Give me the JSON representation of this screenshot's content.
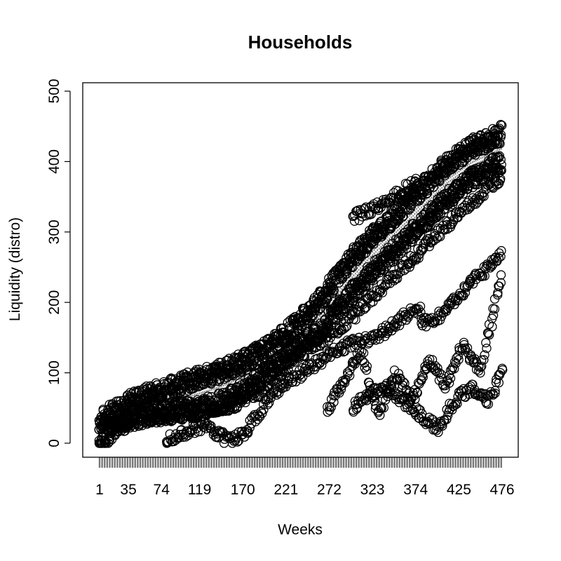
{
  "chart_data": {
    "type": "scatter",
    "title": "Households",
    "xlabel": "Weeks",
    "ylabel": "Liquidity (distro)",
    "x_tick_labels": [
      "1",
      "35",
      "74",
      "119",
      "170",
      "221",
      "272",
      "323",
      "374",
      "425",
      "476"
    ],
    "y_tick_labels": [
      "0",
      "100",
      "200",
      "300",
      "400",
      "500"
    ],
    "xlim": [
      1,
      476
    ],
    "ylim": [
      0,
      500
    ],
    "marker": "open-circle",
    "box_legend": "per-week boxplots along the series",
    "colors": {
      "points": "#000000",
      "boxes": "#555555",
      "frame": "#000000"
    },
    "series": [
      {
        "x": [
          1,
          10,
          30,
          60,
          100,
          140,
          170,
          200,
          230,
          260,
          290,
          320,
          350,
          380,
          410,
          440,
          476
        ],
        "y": [
          30,
          40,
          55,
          70,
          85,
          100,
          115,
          135,
          165,
          200,
          250,
          290,
          325,
          360,
          395,
          420,
          440
        ]
      },
      {
        "x": [
          1,
          20,
          50,
          90,
          120,
          150,
          170,
          200,
          230,
          260,
          290,
          320,
          350,
          380,
          410,
          440,
          476
        ],
        "y": [
          0,
          25,
          40,
          45,
          50,
          60,
          75,
          100,
          130,
          160,
          200,
          240,
          275,
          310,
          345,
          375,
          400
        ]
      },
      {
        "x": [
          1,
          40,
          80,
          120,
          160,
          200,
          230,
          270,
          300,
          330,
          360,
          390,
          420,
          450,
          476
        ],
        "y": [
          25,
          30,
          40,
          45,
          55,
          80,
          120,
          150,
          180,
          215,
          250,
          285,
          320,
          350,
          380
        ]
      },
      {
        "x": [
          80,
          100,
          125,
          150,
          170,
          190,
          210,
          240,
          270,
          295,
          320,
          340,
          360,
          380
        ],
        "y": [
          5,
          15,
          25,
          5,
          10,
          45,
          75,
          100,
          125,
          140,
          150,
          160,
          180,
          190
        ]
      },
      {
        "x": [
          270,
          290,
          310,
          330,
          350,
          370,
          390,
          410,
          430,
          450,
          476
        ],
        "y": [
          50,
          90,
          130,
          40,
          100,
          60,
          120,
          80,
          140,
          100,
          240
        ]
      },
      {
        "x": [
          300,
          320,
          340,
          360,
          380,
          400,
          420,
          440,
          460,
          476
        ],
        "y": [
          50,
          70,
          80,
          60,
          40,
          20,
          60,
          80,
          60,
          100
        ]
      },
      {
        "x": [
          300,
          320,
          340,
          360,
          375
        ],
        "y": [
          320,
          330,
          345,
          360,
          370
        ]
      },
      {
        "x": [
          380,
          400,
          420,
          440,
          460,
          476
        ],
        "y": [
          170,
          180,
          200,
          230,
          250,
          270
        ]
      }
    ]
  }
}
